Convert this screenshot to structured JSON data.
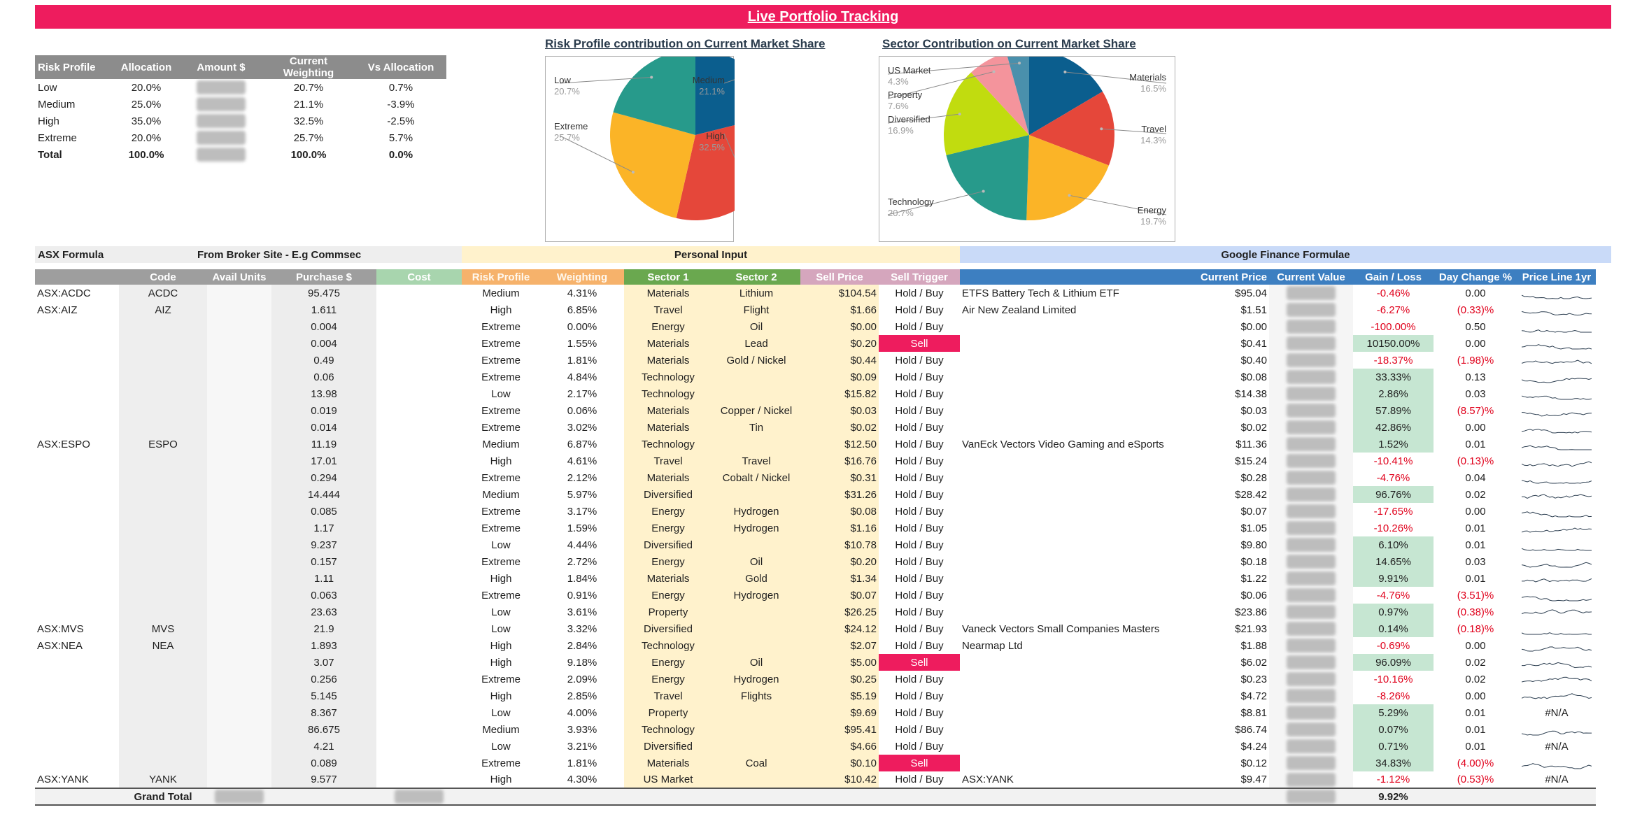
{
  "title": "Live Portfolio Tracking",
  "allocation": {
    "headers": [
      "Risk Profile",
      "Allocation",
      "Amount $",
      "Current Weighting",
      "Vs Allocation"
    ],
    "rows": [
      {
        "profile": "Low",
        "allocation": "20.0%",
        "weighting": "20.7%",
        "vs": "0.7%"
      },
      {
        "profile": "Medium",
        "allocation": "25.0%",
        "weighting": "21.1%",
        "vs": "-3.9%"
      },
      {
        "profile": "High",
        "allocation": "35.0%",
        "weighting": "32.5%",
        "vs": "-2.5%"
      },
      {
        "profile": "Extreme",
        "allocation": "20.0%",
        "weighting": "25.7%",
        "vs": "5.7%"
      }
    ],
    "total": {
      "profile": "Total",
      "allocation": "100.0%",
      "weighting": "100.0%",
      "vs": "0.0%"
    }
  },
  "chart_data": [
    {
      "type": "pie",
      "title": "Risk Profile contribution on Current Market Share",
      "slices": [
        {
          "label": "Medium",
          "value": 21.1,
          "pct": "21.1%",
          "color": "#0b5e8e"
        },
        {
          "label": "High",
          "value": 32.5,
          "pct": "32.5%",
          "color": "#e5473a"
        },
        {
          "label": "Extreme",
          "value": 25.7,
          "pct": "25.7%",
          "color": "#fbb427"
        },
        {
          "label": "Low",
          "value": 20.7,
          "pct": "20.7%",
          "color": "#279a8b"
        }
      ]
    },
    {
      "type": "pie",
      "title": "Sector Contribution on Current Market Share",
      "slices": [
        {
          "label": "Materials",
          "value": 16.5,
          "pct": "16.5%",
          "color": "#0b5e8e"
        },
        {
          "label": "Travel",
          "value": 14.3,
          "pct": "14.3%",
          "color": "#e5473a"
        },
        {
          "label": "Energy",
          "value": 19.7,
          "pct": "19.7%",
          "color": "#fbb427"
        },
        {
          "label": "Technology",
          "value": 20.7,
          "pct": "20.7%",
          "color": "#279a8b"
        },
        {
          "label": "Diversified",
          "value": 16.9,
          "pct": "16.9%",
          "color": "#c1dc0f"
        },
        {
          "label": "Property",
          "value": 7.6,
          "pct": "7.6%",
          "color": "#f4949c"
        },
        {
          "label": "US Market",
          "value": 4.3,
          "pct": "4.3%",
          "color": "#4a90ac"
        }
      ]
    }
  ],
  "groups": {
    "asx": "ASX Formula",
    "broker": "From Broker Site - E.g Commsec",
    "personal": "Personal Input",
    "google": "Google Finance Formulae"
  },
  "columns": [
    "",
    "Code",
    "Avail Units",
    "Purchase $",
    "Cost",
    "Risk Profile",
    "Weighting",
    "Sector 1",
    "Sector 2",
    "Sell Price",
    "Sell Trigger",
    "",
    "Current Price",
    "Current Value",
    "Gain / Loss",
    "Day Change %",
    "Price Line 1yr"
  ],
  "colors": {
    "title": "#ee1c5e",
    "sell": "#ee1c5e",
    "gain_positive": "#c6e6d2",
    "negative": "#e0001b",
    "sector_header": "#6aa84f",
    "google_header": "#3d7fc1"
  },
  "rows": [
    {
      "asx": "ASX:ACDC",
      "code": "ACDC",
      "purchase": "95.475",
      "risk": "Medium",
      "weight": "4.31%",
      "s1": "Materials",
      "s2": "Lithium",
      "sell": "$104.54",
      "trigger": "Hold / Buy",
      "name": "ETFS Battery Tech & Lithium ETF",
      "price": "$95.04",
      "gain": "-0.46%",
      "day": "0.00"
    },
    {
      "asx": "ASX:AIZ",
      "code": "AIZ",
      "purchase": "1.611",
      "risk": "High",
      "weight": "6.85%",
      "s1": "Travel",
      "s2": "Flight",
      "sell": "$1.66",
      "trigger": "Hold / Buy",
      "name": "Air New Zealand Limited",
      "price": "$1.51",
      "gain": "-6.27%",
      "day": "(0.33)%"
    },
    {
      "asx": "",
      "code": "",
      "purchase": "0.004",
      "risk": "Extreme",
      "weight": "0.00%",
      "s1": "Energy",
      "s2": "Oil",
      "sell": "$0.00",
      "trigger": "Hold / Buy",
      "name": "",
      "price": "$0.00",
      "gain": "-100.00%",
      "day": "0.50"
    },
    {
      "asx": "",
      "code": "",
      "purchase": "0.004",
      "risk": "Extreme",
      "weight": "1.55%",
      "s1": "Materials",
      "s2": "Lead",
      "sell": "$0.20",
      "trigger": "Sell",
      "name": "",
      "price": "$0.41",
      "gain": "10150.00%",
      "day": "0.00"
    },
    {
      "asx": "",
      "code": "",
      "purchase": "0.49",
      "risk": "Extreme",
      "weight": "1.81%",
      "s1": "Materials",
      "s2": "Gold / Nickel",
      "sell": "$0.44",
      "trigger": "Hold / Buy",
      "name": "",
      "price": "$0.40",
      "gain": "-18.37%",
      "day": "(1.98)%"
    },
    {
      "asx": "",
      "code": "",
      "purchase": "0.06",
      "risk": "Extreme",
      "weight": "4.84%",
      "s1": "Technology",
      "s2": "",
      "sell": "$0.09",
      "trigger": "Hold / Buy",
      "name": "",
      "price": "$0.08",
      "gain": "33.33%",
      "day": "0.13"
    },
    {
      "asx": "",
      "code": "",
      "purchase": "13.98",
      "risk": "Low",
      "weight": "2.17%",
      "s1": "Technology",
      "s2": "",
      "sell": "$15.82",
      "trigger": "Hold / Buy",
      "name": "",
      "price": "$14.38",
      "gain": "2.86%",
      "day": "0.03"
    },
    {
      "asx": "",
      "code": "",
      "purchase": "0.019",
      "risk": "Extreme",
      "weight": "0.06%",
      "s1": "Materials",
      "s2": "Copper / Nickel",
      "sell": "$0.03",
      "trigger": "Hold / Buy",
      "name": "",
      "price": "$0.03",
      "gain": "57.89%",
      "day": "(8.57)%"
    },
    {
      "asx": "",
      "code": "",
      "purchase": "0.014",
      "risk": "Extreme",
      "weight": "3.02%",
      "s1": "Materials",
      "s2": "Tin",
      "sell": "$0.02",
      "trigger": "Hold / Buy",
      "name": "",
      "price": "$0.02",
      "gain": "42.86%",
      "day": "0.00"
    },
    {
      "asx": "ASX:ESPO",
      "code": "ESPO",
      "purchase": "11.19",
      "risk": "Medium",
      "weight": "6.87%",
      "s1": "Technology",
      "s2": "",
      "sell": "$12.50",
      "trigger": "Hold / Buy",
      "name": "VanEck Vectors Video Gaming and eSports",
      "price": "$11.36",
      "gain": "1.52%",
      "day": "0.01"
    },
    {
      "asx": "",
      "code": "",
      "purchase": "17.01",
      "risk": "High",
      "weight": "4.61%",
      "s1": "Travel",
      "s2": "Travel",
      "sell": "$16.76",
      "trigger": "Hold / Buy",
      "name": "",
      "price": "$15.24",
      "gain": "-10.41%",
      "day": "(0.13)%"
    },
    {
      "asx": "",
      "code": "",
      "purchase": "0.294",
      "risk": "Extreme",
      "weight": "2.12%",
      "s1": "Materials",
      "s2": "Cobalt / Nickel",
      "sell": "$0.31",
      "trigger": "Hold / Buy",
      "name": "",
      "price": "$0.28",
      "gain": "-4.76%",
      "day": "0.04"
    },
    {
      "asx": "",
      "code": "",
      "purchase": "14.444",
      "risk": "Medium",
      "weight": "5.97%",
      "s1": "Diversified",
      "s2": "",
      "sell": "$31.26",
      "trigger": "Hold / Buy",
      "name": "",
      "price": "$28.42",
      "gain": "96.76%",
      "day": "0.02"
    },
    {
      "asx": "",
      "code": "",
      "purchase": "0.085",
      "risk": "Extreme",
      "weight": "3.17%",
      "s1": "Energy",
      "s2": "Hydrogen",
      "sell": "$0.08",
      "trigger": "Hold / Buy",
      "name": "",
      "price": "$0.07",
      "gain": "-17.65%",
      "day": "0.00"
    },
    {
      "asx": "",
      "code": "",
      "purchase": "1.17",
      "risk": "Extreme",
      "weight": "1.59%",
      "s1": "Energy",
      "s2": "Hydrogen",
      "sell": "$1.16",
      "trigger": "Hold / Buy",
      "name": "",
      "price": "$1.05",
      "gain": "-10.26%",
      "day": "0.01"
    },
    {
      "asx": "",
      "code": "",
      "purchase": "9.237",
      "risk": "Low",
      "weight": "4.44%",
      "s1": "Diversified",
      "s2": "",
      "sell": "$10.78",
      "trigger": "Hold / Buy",
      "name": "",
      "price": "$9.80",
      "gain": "6.10%",
      "day": "0.01"
    },
    {
      "asx": "",
      "code": "",
      "purchase": "0.157",
      "risk": "Extreme",
      "weight": "2.72%",
      "s1": "Energy",
      "s2": "Oil",
      "sell": "$0.20",
      "trigger": "Hold / Buy",
      "name": "",
      "price": "$0.18",
      "gain": "14.65%",
      "day": "0.03"
    },
    {
      "asx": "",
      "code": "",
      "purchase": "1.11",
      "risk": "High",
      "weight": "1.84%",
      "s1": "Materials",
      "s2": "Gold",
      "sell": "$1.34",
      "trigger": "Hold / Buy",
      "name": "",
      "price": "$1.22",
      "gain": "9.91%",
      "day": "0.01"
    },
    {
      "asx": "",
      "code": "",
      "purchase": "0.063",
      "risk": "Extreme",
      "weight": "0.91%",
      "s1": "Energy",
      "s2": "Hydrogen",
      "sell": "$0.07",
      "trigger": "Hold / Buy",
      "name": "",
      "price": "$0.06",
      "gain": "-4.76%",
      "day": "(3.51)%"
    },
    {
      "asx": "",
      "code": "",
      "purchase": "23.63",
      "risk": "Low",
      "weight": "3.61%",
      "s1": "Property",
      "s2": "",
      "sell": "$26.25",
      "trigger": "Hold / Buy",
      "name": "",
      "price": "$23.86",
      "gain": "0.97%",
      "day": "(0.38)%"
    },
    {
      "asx": "ASX:MVS",
      "code": "MVS",
      "purchase": "21.9",
      "risk": "Low",
      "weight": "3.32%",
      "s1": "Diversified",
      "s2": "",
      "sell": "$24.12",
      "trigger": "Hold / Buy",
      "name": "Vaneck Vectors Small Companies Masters",
      "price": "$21.93",
      "gain": "0.14%",
      "day": "(0.18)%"
    },
    {
      "asx": "ASX:NEA",
      "code": "NEA",
      "purchase": "1.893",
      "risk": "High",
      "weight": "2.84%",
      "s1": "Technology",
      "s2": "",
      "sell": "$2.07",
      "trigger": "Hold / Buy",
      "name": "Nearmap Ltd",
      "price": "$1.88",
      "gain": "-0.69%",
      "day": "0.00"
    },
    {
      "asx": "",
      "code": "",
      "purchase": "3.07",
      "risk": "High",
      "weight": "9.18%",
      "s1": "Energy",
      "s2": "Oil",
      "sell": "$5.00",
      "trigger": "Sell",
      "name": "",
      "price": "$6.02",
      "gain": "96.09%",
      "day": "0.02"
    },
    {
      "asx": "",
      "code": "",
      "purchase": "0.256",
      "risk": "Extreme",
      "weight": "2.09%",
      "s1": "Energy",
      "s2": "Hydrogen",
      "sell": "$0.25",
      "trigger": "Hold / Buy",
      "name": "",
      "price": "$0.23",
      "gain": "-10.16%",
      "day": "0.02"
    },
    {
      "asx": "",
      "code": "",
      "purchase": "5.145",
      "risk": "High",
      "weight": "2.85%",
      "s1": "Travel",
      "s2": "Flights",
      "sell": "$5.19",
      "trigger": "Hold / Buy",
      "name": "",
      "price": "$4.72",
      "gain": "-8.26%",
      "day": "0.00"
    },
    {
      "asx": "",
      "code": "",
      "purchase": "8.367",
      "risk": "Low",
      "weight": "4.00%",
      "s1": "Property",
      "s2": "",
      "sell": "$9.69",
      "trigger": "Hold / Buy",
      "name": "",
      "price": "$8.81",
      "gain": "5.29%",
      "day": "0.01",
      "spark": "#N/A"
    },
    {
      "asx": "",
      "code": "",
      "purchase": "86.675",
      "risk": "Medium",
      "weight": "3.93%",
      "s1": "Technology",
      "s2": "",
      "sell": "$95.41",
      "trigger": "Hold / Buy",
      "name": "",
      "price": "$86.74",
      "gain": "0.07%",
      "day": "0.01"
    },
    {
      "asx": "",
      "code": "",
      "purchase": "4.21",
      "risk": "Low",
      "weight": "3.21%",
      "s1": "Diversified",
      "s2": "",
      "sell": "$4.66",
      "trigger": "Hold / Buy",
      "name": "",
      "price": "$4.24",
      "gain": "0.71%",
      "day": "0.01",
      "spark": "#N/A"
    },
    {
      "asx": "",
      "code": "",
      "purchase": "0.089",
      "risk": "Extreme",
      "weight": "1.81%",
      "s1": "Materials",
      "s2": "Coal",
      "sell": "$0.10",
      "trigger": "Sell",
      "name": "",
      "price": "$0.12",
      "gain": "34.83%",
      "day": "(4.00)%"
    },
    {
      "asx": "ASX:YANK",
      "code": "YANK",
      "purchase": "9.577",
      "risk": "High",
      "weight": "4.30%",
      "s1": "US Market",
      "s2": "",
      "sell": "$10.42",
      "trigger": "Hold / Buy",
      "name": "ASX:YANK",
      "price": "$9.47",
      "gain": "-1.12%",
      "day": "(0.53)%",
      "spark": "#N/A"
    }
  ],
  "grand_total": {
    "label": "Grand Total",
    "gain": "9.92%"
  }
}
